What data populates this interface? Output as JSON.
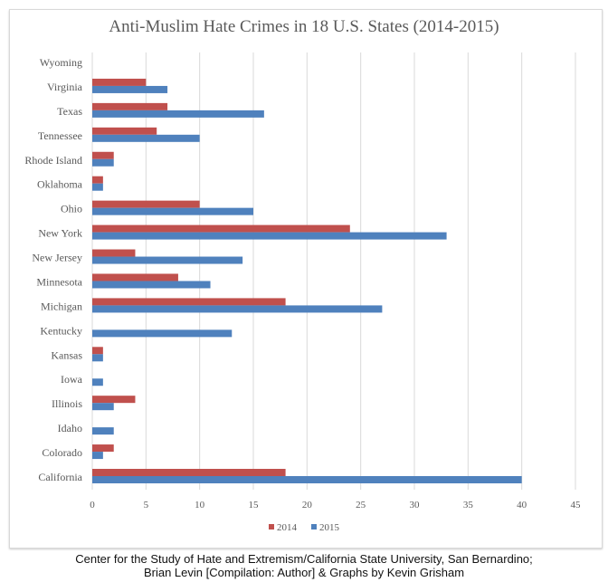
{
  "chart_data": {
    "type": "bar",
    "orientation": "horizontal",
    "title": "Anti-Muslim Hate Crimes in 18 U.S. States (2014-2015)",
    "categories": [
      "Wyoming",
      "Virginia",
      "Texas",
      "Tennessee",
      "Rhode Island",
      "Oklahoma",
      "Ohio",
      "New York",
      "New Jersey",
      "Minnesota",
      "Michigan",
      "Kentucky",
      "Kansas",
      "Iowa",
      "Illinois",
      "Idaho",
      "Colorado",
      "California"
    ],
    "series": [
      {
        "name": "2014",
        "color": "#c0504d",
        "values": [
          0,
          5,
          7,
          6,
          2,
          1,
          10,
          24,
          4,
          8,
          18,
          0,
          1,
          0,
          4,
          0,
          2,
          18
        ]
      },
      {
        "name": "2015",
        "color": "#4f81bd",
        "values": [
          0,
          7,
          16,
          10,
          2,
          1,
          15,
          33,
          14,
          11,
          27,
          13,
          1,
          1,
          2,
          2,
          1,
          40
        ]
      }
    ],
    "xlim": [
      0,
      45
    ],
    "xticks": [
      "0",
      "5",
      "10",
      "15",
      "20",
      "25",
      "30",
      "35",
      "40",
      "45"
    ],
    "grid": true,
    "legend_position": "bottom"
  },
  "caption": {
    "line1": "Center for the Study of Hate and Extremism/California State University, San Bernardino;",
    "line2": "Brian Levin [Compilation: Author] & Graphs by Kevin Grisham"
  }
}
